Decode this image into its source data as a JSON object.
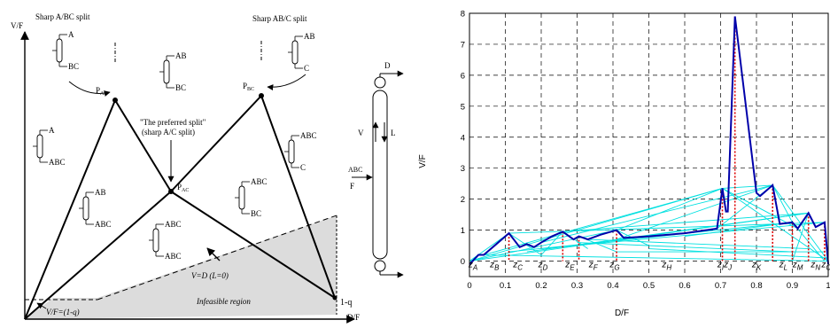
{
  "left_diagram": {
    "axis": {
      "y_label": "V/F",
      "x_label": "D/F",
      "x_end_label": "1-q"
    },
    "splits": {
      "sharp_a_bc": "Sharp A/BC split",
      "sharp_ab_c": "Sharp AB/C split",
      "preferred_line1": "\"The preferred split\"",
      "preferred_line2": "(sharp A/C split)"
    },
    "points": {
      "p_ab": "P",
      "p_ab_sub": "AB",
      "p_bc": "P",
      "p_bc_sub": "BC",
      "p_ac": "P",
      "p_ac_sub": "AC"
    },
    "columns": [
      {
        "top": "A",
        "bottom": "BC"
      },
      {
        "top": "AB",
        "bottom": "BC"
      },
      {
        "top": "AB",
        "bottom": "C"
      },
      {
        "top": "A",
        "bottom": "ABC"
      },
      {
        "top": "ABC",
        "bottom": "C"
      },
      {
        "top": "AB",
        "bottom": "ABC"
      },
      {
        "top": "ABC",
        "bottom": "BC"
      },
      {
        "top": "ABC",
        "bottom": "ABC"
      }
    ],
    "column_sketch": {
      "top": "D",
      "middle_left": "V",
      "middle_right": "L",
      "feed_top": "ABC",
      "feed_bottom": "F"
    },
    "infeasible": {
      "line_eq": "V=D (L=0)",
      "min_eq": "V/F=(1-q)",
      "region": "Infeasible region"
    }
  },
  "chart_data": {
    "type": "line",
    "xlabel": "D/F",
    "ylabel": "V/F",
    "xlim": [
      0,
      1
    ],
    "ylim": [
      -0.5,
      8
    ],
    "x_ticks": [
      "0",
      "0.1",
      "0.2",
      "0.3",
      "0.4",
      "0.5",
      "0.6",
      "0.7",
      "0.8",
      "0.9",
      "1"
    ],
    "y_ticks": [
      "0",
      "1",
      "2",
      "3",
      "4",
      "5",
      "6",
      "7",
      "8"
    ],
    "grid": true,
    "colors": {
      "envelope": "#0000aa",
      "splits": "#00e0e0",
      "peaks": "#dd0000"
    },
    "envelope": {
      "x": [
        0,
        0.025,
        0.04,
        0.075,
        0.11,
        0.14,
        0.16,
        0.18,
        0.2,
        0.23,
        0.26,
        0.29,
        0.305,
        0.33,
        0.365,
        0.41,
        0.43,
        0.5,
        0.6,
        0.69,
        0.705,
        0.715,
        0.72,
        0.74,
        0.8,
        0.81,
        0.845,
        0.865,
        0.9,
        0.915,
        0.945,
        0.965,
        0.99,
        1
      ],
      "y": [
        -0.1,
        0.2,
        0.2,
        0.55,
        0.9,
        0.45,
        0.55,
        0.45,
        0.6,
        0.8,
        0.95,
        0.7,
        0.8,
        0.7,
        0.85,
        1.0,
        0.75,
        0.8,
        0.9,
        1.05,
        2.35,
        1.6,
        1.6,
        7.9,
        2.2,
        2.1,
        2.45,
        1.2,
        1.25,
        1.05,
        1.55,
        1.1,
        1.25,
        -0.1
      ]
    },
    "peaks": [
      {
        "x": 0.11,
        "y": 0.9
      },
      {
        "x": 0.26,
        "y": 0.95
      },
      {
        "x": 0.305,
        "y": 0.8
      },
      {
        "x": 0.41,
        "y": 1.0
      },
      {
        "x": 0.705,
        "y": 2.35
      },
      {
        "x": 0.74,
        "y": 7.9
      },
      {
        "x": 0.845,
        "y": 2.45
      },
      {
        "x": 0.9,
        "y": 1.25
      },
      {
        "x": 0.945,
        "y": 1.55
      },
      {
        "x": 0.99,
        "y": 1.25
      }
    ],
    "split_lines": [
      [
        [
          0.0,
          0.0
        ],
        [
          0.705,
          2.35
        ]
      ],
      [
        [
          0.04,
          0.2
        ],
        [
          0.705,
          2.35
        ]
      ],
      [
        [
          0.41,
          1.0
        ],
        [
          0.705,
          2.35
        ]
      ],
      [
        [
          0.705,
          2.35
        ],
        [
          1.0,
          0.0
        ]
      ],
      [
        [
          0.705,
          2.35
        ],
        [
          0.915,
          1.05
        ]
      ],
      [
        [
          0.705,
          2.35
        ],
        [
          0.845,
          2.45
        ]
      ],
      [
        [
          0.845,
          2.45
        ],
        [
          0.69,
          1.05
        ]
      ],
      [
        [
          0.845,
          2.45
        ],
        [
          0.41,
          0.7
        ]
      ],
      [
        [
          0.845,
          2.45
        ],
        [
          0.2,
          0.6
        ]
      ],
      [
        [
          0.845,
          2.45
        ],
        [
          1.0,
          0.0
        ]
      ],
      [
        [
          0.845,
          2.45
        ],
        [
          0.9,
          1.25
        ]
      ],
      [
        [
          0.0,
          0.0
        ],
        [
          0.11,
          0.9
        ]
      ],
      [
        [
          0.11,
          0.9
        ],
        [
          0.2,
          0.2
        ]
      ],
      [
        [
          0.2,
          0.2
        ],
        [
          0.26,
          0.95
        ]
      ],
      [
        [
          0.26,
          0.95
        ],
        [
          0.33,
          0.4
        ]
      ],
      [
        [
          0.305,
          0.8
        ],
        [
          0.41,
          0.3
        ]
      ],
      [
        [
          0.41,
          1.0
        ],
        [
          0.5,
          0.5
        ]
      ],
      [
        [
          0.04,
          0.2
        ],
        [
          1.0,
          0.0
        ]
      ],
      [
        [
          0.11,
          0.3
        ],
        [
          0.9,
          1.25
        ]
      ],
      [
        [
          0.16,
          0.3
        ],
        [
          0.945,
          1.55
        ]
      ],
      [
        [
          0.2,
          0.4
        ],
        [
          0.99,
          1.25
        ]
      ],
      [
        [
          0.3,
          0.6
        ],
        [
          0.9,
          0.3
        ]
      ],
      [
        [
          0.33,
          0.7
        ],
        [
          0.945,
          0.4
        ]
      ],
      [
        [
          0.41,
          0.3
        ],
        [
          0.99,
          0.3
        ]
      ],
      [
        [
          0.5,
          0.4
        ],
        [
          1.0,
          0.1
        ]
      ],
      [
        [
          0.6,
          0.8
        ],
        [
          0.9,
          1.25
        ]
      ],
      [
        [
          0.0,
          0.0
        ],
        [
          0.41,
          1.0
        ]
      ],
      [
        [
          0.0,
          0.0
        ],
        [
          0.945,
          1.55
        ]
      ],
      [
        [
          0.11,
          0.9
        ],
        [
          0.99,
          1.25
        ]
      ],
      [
        [
          0.26,
          0.95
        ],
        [
          0.945,
          1.55
        ]
      ],
      [
        [
          0.9,
          1.25
        ],
        [
          0.99,
          0.0
        ]
      ],
      [
        [
          0.945,
          1.55
        ],
        [
          0.9,
          0.0
        ]
      ]
    ],
    "zones": [
      {
        "x": 0.01,
        "label": "z",
        "sub": "A"
      },
      {
        "x": 0.07,
        "label": "z",
        "sub": "B"
      },
      {
        "x": 0.135,
        "label": "z",
        "sub": "C"
      },
      {
        "x": 0.205,
        "label": "z",
        "sub": "D"
      },
      {
        "x": 0.28,
        "label": "z",
        "sub": "E"
      },
      {
        "x": 0.345,
        "label": "z",
        "sub": "F"
      },
      {
        "x": 0.405,
        "label": "z",
        "sub": "G"
      },
      {
        "x": 0.55,
        "label": "z",
        "sub": "H"
      },
      {
        "x": 0.7,
        "label": "z",
        "sub": "I"
      },
      {
        "x": 0.72,
        "label": "z",
        "sub": "J"
      },
      {
        "x": 0.8,
        "label": "z",
        "sub": "K"
      },
      {
        "x": 0.875,
        "label": "z",
        "sub": "L"
      },
      {
        "x": 0.915,
        "label": "z",
        "sub": "M"
      },
      {
        "x": 0.965,
        "label": "z",
        "sub": "N"
      },
      {
        "x": 0.995,
        "label": "z",
        "sub": "O"
      }
    ]
  }
}
